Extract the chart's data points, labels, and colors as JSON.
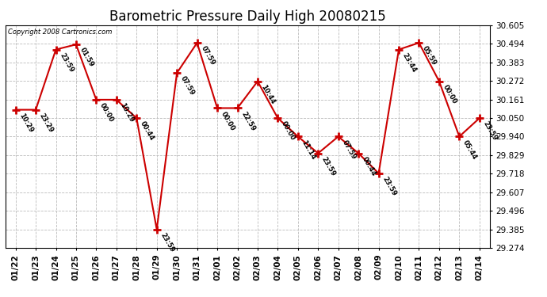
{
  "title": "Barometric Pressure Daily High 20080215",
  "copyright": "Copyright 2008 Cartronics.com",
  "labels": [
    "01/22",
    "01/23",
    "01/24",
    "01/25",
    "01/26",
    "01/27",
    "01/28",
    "01/29",
    "01/30",
    "01/31",
    "02/01",
    "02/02",
    "02/03",
    "02/04",
    "02/05",
    "02/06",
    "02/07",
    "02/08",
    "02/09",
    "02/10",
    "02/11",
    "02/12",
    "02/13",
    "02/14"
  ],
  "values": [
    30.1,
    30.1,
    30.46,
    30.49,
    30.16,
    30.16,
    30.05,
    29.385,
    30.32,
    30.5,
    30.11,
    30.11,
    30.27,
    30.05,
    29.94,
    29.84,
    29.94,
    29.84,
    29.72,
    30.46,
    30.5,
    30.27,
    29.94,
    30.05
  ],
  "point_labels": [
    "10:29",
    "23:29",
    "23:59",
    "01:59",
    "00:00",
    "10:29",
    "00:44",
    "23:59",
    "07:59",
    "07:59",
    "00:00",
    "22:59",
    "10:44",
    "00:00",
    "11:14",
    "23:59",
    "07:59",
    "00:44",
    "23:59",
    "23:44",
    "05:59",
    "00:00",
    "05:44",
    "23:59"
  ],
  "line_color": "#cc0000",
  "marker_color": "#cc0000",
  "background_color": "#ffffff",
  "grid_color": "#bbbbbb",
  "yticks": [
    29.274,
    29.385,
    29.496,
    29.607,
    29.718,
    29.829,
    29.94,
    30.05,
    30.161,
    30.272,
    30.383,
    30.494,
    30.605
  ],
  "ylim": [
    29.274,
    30.605
  ],
  "title_fontsize": 12,
  "tick_fontsize": 7.5
}
